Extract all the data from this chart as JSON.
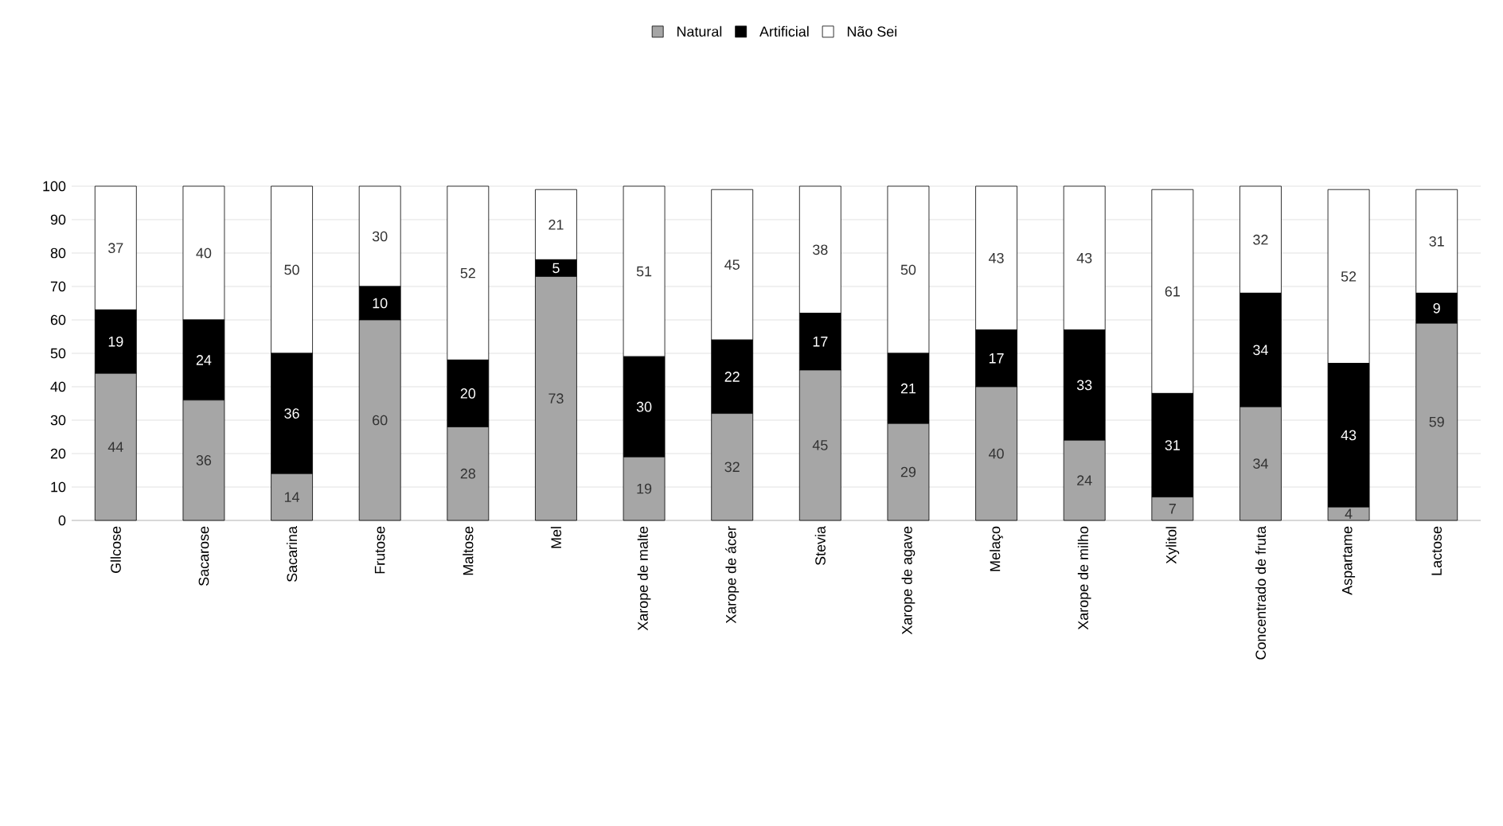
{
  "chart_data": {
    "type": "bar",
    "stacked": true,
    "data_labels": true,
    "grid": "y",
    "legend": "top",
    "categories": [
      "Gllcose",
      "Sacarose",
      "Sacarina",
      "Frutose",
      "Maltose",
      "Mel",
      "Xarope de malte",
      "Xarope de ácer",
      "Stevia",
      "Xarope de agave",
      "Melaço",
      "Xarope de milho",
      "Xylitol",
      "Concentrado de fruta",
      "Aspartame",
      "Lactose"
    ],
    "series": [
      {
        "name": "Natural",
        "color": "#a6a6a6",
        "values": [
          44,
          36,
          14,
          60,
          28,
          73,
          19,
          32,
          45,
          29,
          40,
          24,
          7,
          34,
          4,
          59
        ]
      },
      {
        "name": "Artificial",
        "color": "#000000",
        "values": [
          19,
          24,
          36,
          10,
          20,
          5,
          30,
          22,
          17,
          21,
          17,
          33,
          31,
          34,
          43,
          9
        ]
      },
      {
        "name": "Não Sei",
        "color": "#ffffff",
        "values": [
          37,
          40,
          50,
          30,
          52,
          21,
          51,
          45,
          38,
          50,
          43,
          43,
          61,
          32,
          52,
          31
        ]
      }
    ],
    "ylim": [
      0,
      100
    ],
    "yticks": [
      0,
      10,
      20,
      30,
      40,
      50,
      60,
      70,
      80,
      90,
      100
    ]
  }
}
